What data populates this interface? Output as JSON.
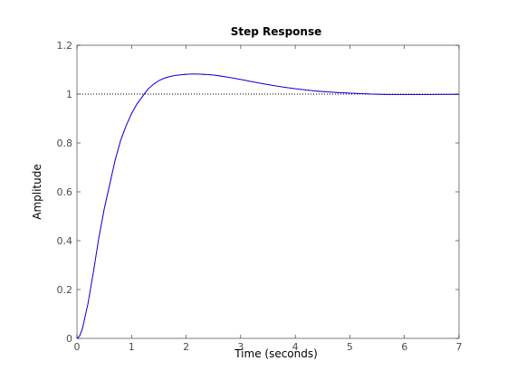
{
  "chart_data": {
    "type": "line",
    "title": "Step Response",
    "xlabel": "Time (seconds)",
    "ylabel": "Amplitude",
    "xlim": [
      0,
      7
    ],
    "ylim": [
      0,
      1.2
    ],
    "xticks": [
      0,
      1,
      2,
      3,
      4,
      5,
      6,
      7
    ],
    "yticks": [
      0,
      0.2,
      0.4,
      0.6,
      0.8,
      1,
      1.2
    ],
    "grid": false,
    "reference_line": {
      "y": 1,
      "style": "dotted",
      "color": "#000000"
    },
    "series": [
      {
        "color": "#ff0000",
        "x": [
          0,
          0.05,
          0.1,
          0.2,
          0.3,
          0.4,
          0.5,
          0.6,
          0.7,
          0.8,
          0.9,
          1.0,
          1.1,
          1.2,
          1.3,
          1.4,
          1.5,
          1.6,
          1.7,
          1.8,
          1.9,
          2.0,
          2.1,
          2.2,
          2.3,
          2.4,
          2.5,
          2.6,
          2.8,
          3.0,
          3.2,
          3.4,
          3.6,
          3.8,
          4.0,
          4.2,
          4.4,
          4.6,
          4.8,
          5.0,
          5.2,
          5.4,
          5.6,
          5.8,
          6.0,
          6.2,
          6.4,
          6.6,
          6.8,
          7.0
        ],
        "y": [
          0,
          0.01,
          0.04,
          0.14,
          0.27,
          0.41,
          0.53,
          0.63,
          0.73,
          0.81,
          0.87,
          0.92,
          0.96,
          0.99,
          1.02,
          1.04,
          1.055,
          1.065,
          1.072,
          1.076,
          1.079,
          1.081,
          1.082,
          1.082,
          1.081,
          1.08,
          1.078,
          1.075,
          1.068,
          1.06,
          1.051,
          1.043,
          1.035,
          1.028,
          1.022,
          1.017,
          1.012,
          1.009,
          1.006,
          1.004,
          1.002,
          1.0,
          0.999,
          0.998,
          0.998,
          0.998,
          0.998,
          0.999,
          0.999,
          0.999
        ]
      },
      {
        "color": "#0000ff",
        "x": [
          0,
          0.05,
          0.1,
          0.2,
          0.3,
          0.4,
          0.5,
          0.6,
          0.7,
          0.8,
          0.9,
          1.0,
          1.1,
          1.2,
          1.3,
          1.4,
          1.5,
          1.6,
          1.7,
          1.8,
          1.9,
          2.0,
          2.1,
          2.2,
          2.3,
          2.4,
          2.5,
          2.6,
          2.8,
          3.0,
          3.2,
          3.4,
          3.6,
          3.8,
          4.0,
          4.2,
          4.4,
          4.6,
          4.8,
          5.0,
          5.2,
          5.4,
          5.6,
          5.8,
          6.0,
          6.2,
          6.4,
          6.6,
          6.8,
          7.0
        ],
        "y": [
          0,
          0.01,
          0.04,
          0.14,
          0.27,
          0.41,
          0.53,
          0.63,
          0.73,
          0.81,
          0.87,
          0.92,
          0.96,
          0.99,
          1.02,
          1.04,
          1.055,
          1.065,
          1.072,
          1.076,
          1.079,
          1.081,
          1.082,
          1.082,
          1.081,
          1.08,
          1.078,
          1.075,
          1.068,
          1.06,
          1.051,
          1.043,
          1.035,
          1.028,
          1.022,
          1.017,
          1.012,
          1.009,
          1.006,
          1.004,
          1.002,
          1.0,
          0.999,
          0.998,
          0.998,
          0.998,
          0.998,
          0.999,
          0.999,
          0.999
        ]
      }
    ]
  }
}
